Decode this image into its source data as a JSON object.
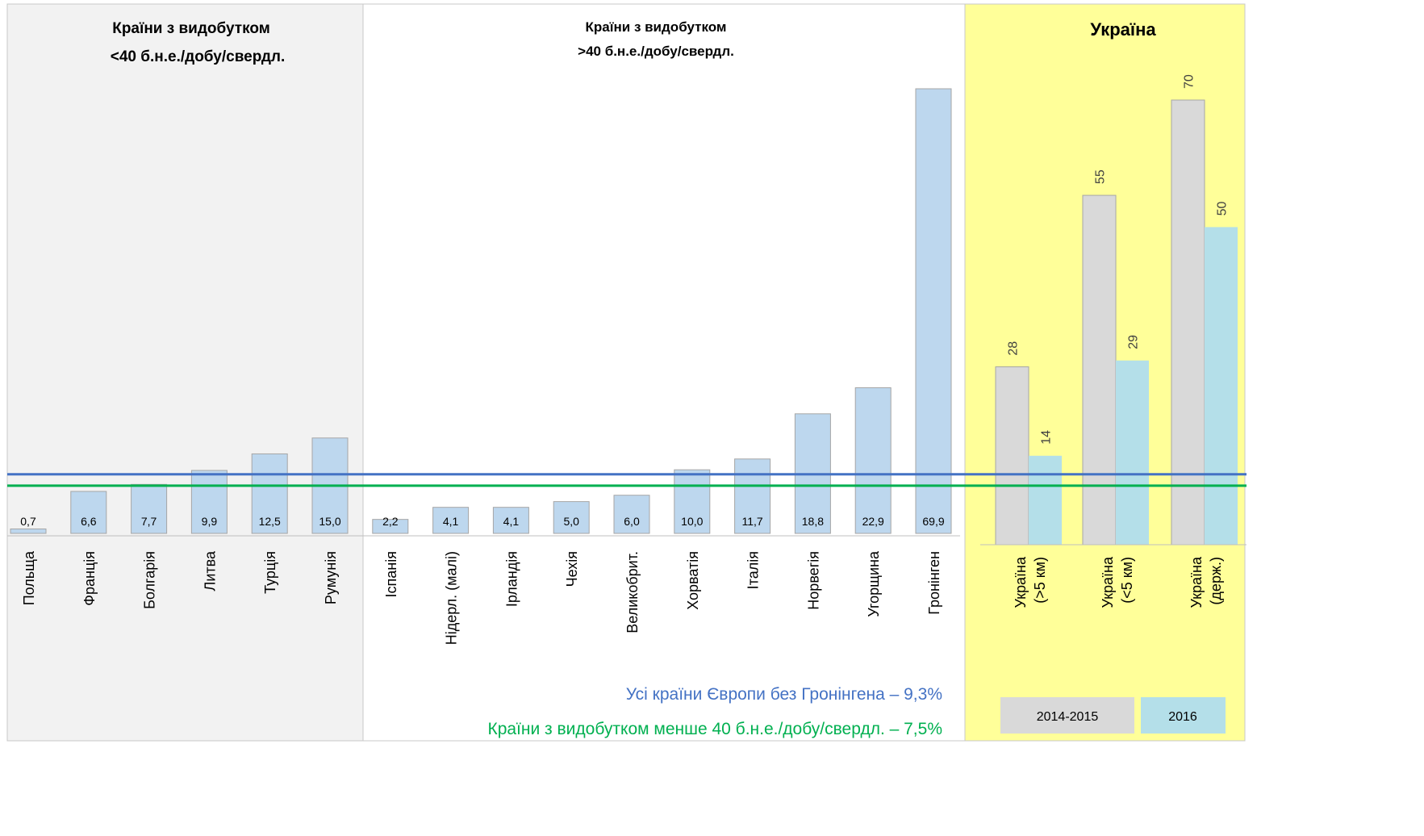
{
  "panels": [
    {
      "title_line1": "Країни з видобутком",
      "title_line2": "<40 б.н.е./добу/свердл."
    },
    {
      "title_line1": "Країни з видобутком",
      "title_line2": ">40 б.н.е./добу/свердл."
    },
    {
      "title_line1": "Україна",
      "title_line2": ""
    }
  ],
  "colors": {
    "panel1_bg": "#f2f2f2",
    "panel2_bg": "#ffffff",
    "panel3_bg": "#ffff99",
    "europe_bar": "#bdd7ee",
    "ukraine_2014": "#d9d9d9",
    "ukraine_2016": "#b4dfe9",
    "line_all_europe": "#4472c4",
    "line_low_output": "#00b050"
  },
  "chart_data": [
    {
      "type": "bar",
      "panel": "Країни з видобутком <40 б.н.е./добу/свердл.",
      "categories": [
        "Польща",
        "Франція",
        "Болгарія",
        "Литва",
        "Турція",
        "Румунія"
      ],
      "values": [
        0.7,
        6.6,
        7.7,
        9.9,
        12.5,
        15.0
      ],
      "labels": [
        "0,7",
        "6,6",
        "7,7",
        "9,9",
        "12,5",
        "15,0"
      ]
    },
    {
      "type": "bar",
      "panel": "Країни з видобутком >40 б.н.е./добу/свердл.",
      "categories": [
        "Іспанія",
        "Нідерл. (малі)",
        "Ірландія",
        "Чехія",
        "Великобрит.",
        "Хорватія",
        "Італія",
        "Норвегія",
        "Угорщина",
        "Гронінген"
      ],
      "values": [
        2.2,
        4.1,
        4.1,
        5.0,
        6.0,
        10.0,
        11.7,
        18.8,
        22.9,
        69.9
      ],
      "labels": [
        "2,2",
        "4,1",
        "4,1",
        "5,0",
        "6,0",
        "10,0",
        "11,7",
        "18,8",
        "22,9",
        "69,9"
      ]
    },
    {
      "type": "bar",
      "panel": "Україна",
      "categories": [
        {
          "line1": "Україна",
          "line2": "(>5 км)"
        },
        {
          "line1": "Україна",
          "line2": "(<5 км)"
        },
        {
          "line1": "Україна",
          "line2": "(держ.)"
        }
      ],
      "series": [
        {
          "name": "2014-2015",
          "values": [
            28,
            55,
            70
          ],
          "labels": [
            "28",
            "55",
            "70"
          ]
        },
        {
          "name": "2016",
          "values": [
            14,
            29,
            50
          ],
          "labels": [
            "14",
            "29",
            "50"
          ]
        }
      ],
      "legend": "bottom"
    }
  ],
  "reference_lines": [
    {
      "label": "Усі країни Європи без Гронінгена – 9,3%",
      "value": 9.3,
      "color": "#4472c4"
    },
    {
      "label": "Країни з видобутком менше 40 б.н.е./добу/свердл. – 7,5%",
      "value": 7.5,
      "color": "#00b050"
    }
  ]
}
